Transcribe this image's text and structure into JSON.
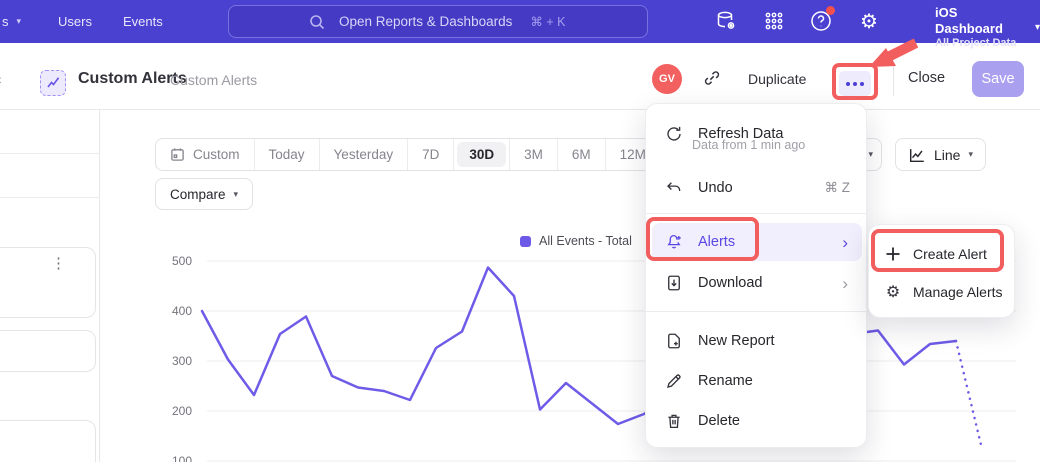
{
  "colors": {
    "topnav_bg": "#4b41d1",
    "accent_purple": "#5a48e3",
    "line_color": "#6e5be8",
    "annotation_red": "#f25d5d",
    "avatar_red": "#f36060"
  },
  "topnav": {
    "cut_item_label": "s",
    "items": [
      "Users",
      "Events"
    ],
    "search_placeholder": "Open Reports & Dashboards",
    "search_shortcut": "⌘ + K",
    "project_name": "iOS Dashboard",
    "project_scope": "All Project Data"
  },
  "header": {
    "title": "Custom Alerts",
    "breadcrumb": "Custom Alerts",
    "avatar_initials": "GV",
    "duplicate_label": "Duplicate",
    "close_label": "Close",
    "save_label": "Save"
  },
  "toolbar": {
    "ranges": [
      "Custom",
      "Today",
      "Yesterday",
      "7D",
      "30D",
      "3M",
      "6M",
      "12M"
    ],
    "selected_range": "30D",
    "compare_label": "Compare",
    "chart_type_label": "Line"
  },
  "menu": {
    "refresh_label": "Refresh Data",
    "refresh_sub": "Data from 1 min ago",
    "undo_label": "Undo",
    "undo_shortcut": "⌘ Z",
    "alerts_label": "Alerts",
    "download_label": "Download",
    "new_report_label": "New Report",
    "rename_label": "Rename",
    "delete_label": "Delete"
  },
  "submenu": {
    "create_label": "Create Alert",
    "manage_label": "Manage Alerts"
  },
  "chart_data": {
    "type": "line",
    "title": "",
    "legend_position": "top-right",
    "grid": "horizontal",
    "yticks": [
      100,
      200,
      300,
      400,
      500
    ],
    "ylim": [
      100,
      500
    ],
    "x_range_label": "30D",
    "incomplete_tail_dotted": true,
    "series": [
      {
        "name": "All Events - Total",
        "values": [
          400,
          303,
          232,
          354,
          389,
          270,
          247,
          240,
          222,
          326,
          359,
          487,
          430,
          203,
          256,
          215,
          174,
          194,
          230,
          210,
          260,
          240,
          290,
          320,
          348,
          354,
          361,
          293,
          334,
          340,
          124
        ]
      }
    ]
  }
}
